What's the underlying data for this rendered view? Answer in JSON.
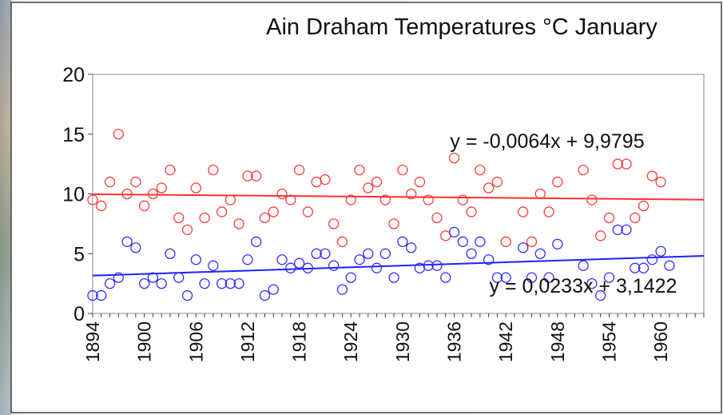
{
  "chart_data": {
    "type": "scatter",
    "title": "Ain Draham Temperatures °C January",
    "xlabel": "",
    "ylabel": "",
    "xlim": [
      1894,
      1965
    ],
    "ylim": [
      0,
      20
    ],
    "yticks": [
      0,
      5,
      10,
      15,
      20
    ],
    "xticks": [
      1894,
      1900,
      1906,
      1912,
      1918,
      1924,
      1930,
      1936,
      1942,
      1948,
      1954,
      1960
    ],
    "grid": false,
    "legend": "none",
    "series": [
      {
        "color": "#ff3b3b",
        "x": [
          1894,
          1895,
          1896,
          1897,
          1898,
          1899,
          1900,
          1901,
          1902,
          1903,
          1904,
          1905,
          1906,
          1907,
          1908,
          1909,
          1910,
          1911,
          1912,
          1913,
          1914,
          1915,
          1916,
          1917,
          1918,
          1919,
          1920,
          1921,
          1922,
          1923,
          1924,
          1925,
          1926,
          1927,
          1928,
          1929,
          1930,
          1931,
          1932,
          1933,
          1934,
          1935,
          1936,
          1937,
          1938,
          1939,
          1940,
          1941,
          1942,
          1944,
          1945,
          1946,
          1947,
          1948,
          1951,
          1952,
          1953,
          1954,
          1955,
          1956,
          1957,
          1958,
          1959,
          1960
        ],
        "y": [
          9.5,
          9.0,
          11.0,
          15.0,
          10.0,
          11.0,
          9.0,
          10.0,
          10.5,
          12.0,
          8.0,
          7.0,
          10.5,
          8.0,
          12.0,
          8.5,
          9.5,
          7.5,
          11.5,
          11.5,
          8.0,
          8.5,
          10.0,
          9.5,
          12.0,
          8.5,
          11.0,
          11.2,
          7.5,
          6.0,
          9.5,
          12.0,
          10.5,
          11.0,
          9.5,
          7.5,
          12.0,
          10.0,
          11.0,
          9.5,
          8.0,
          6.5,
          13.0,
          9.5,
          8.5,
          12.0,
          10.5,
          11.0,
          6.0,
          8.5,
          6.0,
          10.0,
          8.5,
          11.0,
          12.0,
          9.5,
          6.5,
          8.0,
          12.5,
          12.5,
          8.0,
          9.0,
          11.5,
          11.0
        ]
      },
      {
        "color": "#3030ff",
        "x": [
          1894,
          1895,
          1896,
          1897,
          1898,
          1899,
          1900,
          1901,
          1902,
          1903,
          1904,
          1905,
          1906,
          1907,
          1908,
          1909,
          1910,
          1911,
          1912,
          1913,
          1914,
          1915,
          1916,
          1917,
          1918,
          1919,
          1920,
          1921,
          1922,
          1923,
          1924,
          1925,
          1926,
          1927,
          1928,
          1929,
          1930,
          1931,
          1932,
          1933,
          1934,
          1935,
          1936,
          1937,
          1938,
          1939,
          1940,
          1941,
          1942,
          1944,
          1945,
          1946,
          1947,
          1948,
          1951,
          1952,
          1953,
          1954,
          1955,
          1956,
          1957,
          1958,
          1959,
          1960,
          1961
        ],
        "y": [
          1.5,
          1.5,
          2.5,
          3.0,
          6.0,
          5.5,
          2.5,
          3.0,
          2.5,
          5.0,
          3.0,
          1.5,
          4.5,
          2.5,
          4.0,
          2.5,
          2.5,
          2.5,
          4.5,
          6.0,
          1.5,
          2.0,
          4.5,
          3.8,
          4.2,
          3.8,
          5.0,
          5.0,
          4.0,
          2.0,
          3.0,
          4.5,
          5.0,
          3.8,
          5.0,
          3.0,
          6.0,
          5.5,
          3.8,
          4.0,
          4.0,
          3.0,
          6.8,
          6.0,
          5.0,
          6.0,
          4.5,
          3.0,
          3.0,
          5.5,
          3.0,
          5.0,
          3.0,
          5.8,
          4.0,
          2.5,
          1.5,
          3.0,
          7.0,
          7.0,
          3.8,
          3.8,
          4.5,
          5.2,
          4.0
        ]
      }
    ],
    "trendlines": [
      {
        "color": "#ff3030",
        "slope": -0.0064,
        "intercept": 9.9795,
        "label": "y = -0,0064x + 9,9795"
      },
      {
        "color": "#2020ff",
        "slope": 0.0233,
        "intercept": 3.1422,
        "label": "y = 0,0233x + 3,1422"
      }
    ]
  }
}
